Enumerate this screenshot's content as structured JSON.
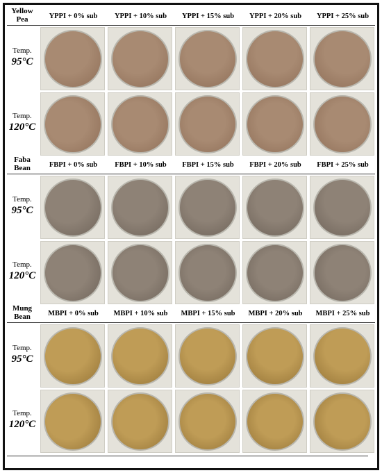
{
  "sections": [
    {
      "name": "Yellow Pea",
      "columns": [
        "YPPI + 0% sub",
        "YPPI + 10% sub",
        "YPPI + 15% sub",
        "YPPI + 20% sub",
        "YPPI + 25% sub"
      ],
      "rows": [
        {
          "label": "Temp.",
          "temp": "95°C"
        },
        {
          "label": "Temp.",
          "temp": "120°C"
        }
      ]
    },
    {
      "name": "Faba Bean",
      "columns": [
        "FBPI + 0% sub",
        "FBPI + 10% sub",
        "FBPI + 15% sub",
        "FBPI + 20% sub",
        "FBPI + 25% sub"
      ],
      "rows": [
        {
          "label": "Temp.",
          "temp": "95°C"
        },
        {
          "label": "Temp.",
          "temp": "120°C"
        }
      ]
    },
    {
      "name": "Mung Bean",
      "columns": [
        "MBPI + 0% sub",
        "MBPI + 10% sub",
        "MBPI + 15% sub",
        "MBPI + 20% sub",
        "MBPI + 25% sub"
      ],
      "rows": [
        {
          "label": "Temp.",
          "temp": "95°C"
        },
        {
          "label": "Temp.",
          "temp": "120°C"
        }
      ]
    }
  ]
}
